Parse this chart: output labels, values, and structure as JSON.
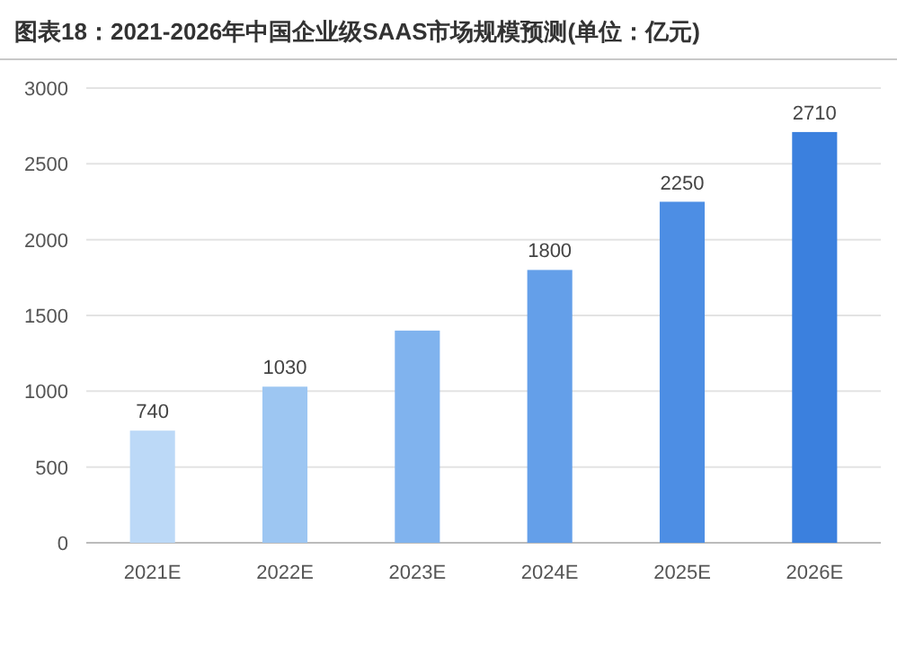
{
  "chart_data": {
    "type": "bar",
    "title": "图表18：2021-2026年中国企业级SAAS市场规模预测(单位：亿元)",
    "categories": [
      "2021E",
      "2022E",
      "2023E",
      "2024E",
      "2025E",
      "2026E"
    ],
    "values": [
      740,
      1030,
      1400,
      1800,
      2250,
      2710
    ],
    "colors": [
      "#bcd9f7",
      "#9dc6f2",
      "#80b3ee",
      "#649fe9",
      "#4d8ee4",
      "#3b80de"
    ],
    "value_labels": [
      "740",
      "1030",
      null,
      "1800",
      "2250",
      "2710"
    ],
    "ylim": [
      0,
      3000
    ],
    "yticks": [
      0,
      500,
      1000,
      1500,
      2000,
      2500,
      3000
    ],
    "grid": "y"
  }
}
